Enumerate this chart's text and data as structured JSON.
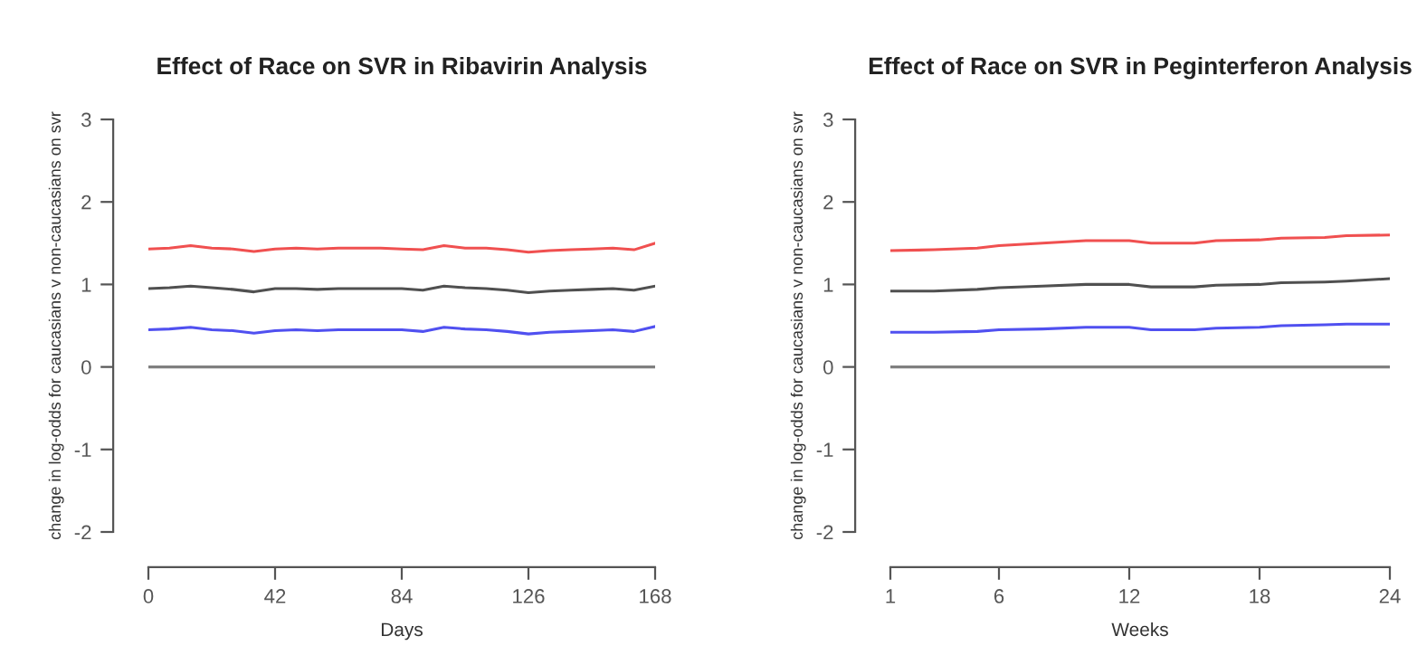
{
  "chart_data": [
    {
      "type": "line",
      "title": "Effect of Race on SVR in Ribavirin Analysis",
      "xlabel": "Days",
      "ylabel": "change in log-odds for caucasians v non-caucasians on svr",
      "x": [
        0,
        7,
        14,
        21,
        28,
        35,
        42,
        49,
        56,
        63,
        70,
        77,
        84,
        91,
        98,
        105,
        112,
        119,
        126,
        133,
        140,
        147,
        154,
        161,
        168
      ],
      "series": [
        {
          "color": "#f05050",
          "values": [
            1.43,
            1.44,
            1.47,
            1.44,
            1.43,
            1.4,
            1.43,
            1.44,
            1.43,
            1.44,
            1.44,
            1.44,
            1.43,
            1.42,
            1.47,
            1.44,
            1.44,
            1.42,
            1.39,
            1.41,
            1.42,
            1.43,
            1.44,
            1.42,
            1.5
          ]
        },
        {
          "color": "#505050",
          "values": [
            0.95,
            0.96,
            0.98,
            0.96,
            0.94,
            0.91,
            0.95,
            0.95,
            0.94,
            0.95,
            0.95,
            0.95,
            0.95,
            0.93,
            0.98,
            0.96,
            0.95,
            0.93,
            0.9,
            0.92,
            0.93,
            0.94,
            0.95,
            0.93,
            0.98
          ]
        },
        {
          "color": "#5050f0",
          "values": [
            0.45,
            0.46,
            0.48,
            0.45,
            0.44,
            0.41,
            0.44,
            0.45,
            0.44,
            0.45,
            0.45,
            0.45,
            0.45,
            0.43,
            0.48,
            0.46,
            0.45,
            0.43,
            0.4,
            0.42,
            0.43,
            0.44,
            0.45,
            0.43,
            0.49
          ]
        },
        {
          "color": "#808080",
          "values": [
            0,
            0,
            0,
            0,
            0,
            0,
            0,
            0,
            0,
            0,
            0,
            0,
            0,
            0,
            0,
            0,
            0,
            0,
            0,
            0,
            0,
            0,
            0,
            0,
            0
          ]
        }
      ],
      "xlim": [
        0,
        168
      ],
      "ylim": [
        -2,
        3
      ],
      "xticks": [
        0,
        42,
        84,
        126,
        168
      ],
      "yticks": [
        -2,
        -1,
        0,
        1,
        2,
        3
      ]
    },
    {
      "type": "line",
      "title": "Effect of Race on SVR in Peginterferon Analysis",
      "xlabel": "Weeks",
      "ylabel": "change in log-odds for caucasians v non-caucasians on svr",
      "x": [
        1,
        3,
        5,
        6,
        8,
        10,
        12,
        13,
        15,
        16,
        18,
        19,
        21,
        22,
        24
      ],
      "series": [
        {
          "color": "#f05050",
          "values": [
            1.41,
            1.42,
            1.44,
            1.47,
            1.5,
            1.53,
            1.53,
            1.5,
            1.5,
            1.53,
            1.54,
            1.56,
            1.57,
            1.59,
            1.6
          ]
        },
        {
          "color": "#505050",
          "values": [
            0.92,
            0.92,
            0.94,
            0.96,
            0.98,
            1.0,
            1.0,
            0.97,
            0.97,
            0.99,
            1.0,
            1.02,
            1.03,
            1.04,
            1.07
          ]
        },
        {
          "color": "#5050f0",
          "values": [
            0.42,
            0.42,
            0.43,
            0.45,
            0.46,
            0.48,
            0.48,
            0.45,
            0.45,
            0.47,
            0.48,
            0.5,
            0.51,
            0.52,
            0.52
          ]
        },
        {
          "color": "#808080",
          "values": [
            0,
            0,
            0,
            0,
            0,
            0,
            0,
            0,
            0,
            0,
            0,
            0,
            0,
            0,
            0
          ]
        }
      ],
      "xlim": [
        1,
        24
      ],
      "ylim": [
        -2,
        3
      ],
      "xticks": [
        1,
        6,
        12,
        18,
        24
      ],
      "yticks": [
        -2,
        -1,
        0,
        1,
        2,
        3
      ]
    }
  ]
}
